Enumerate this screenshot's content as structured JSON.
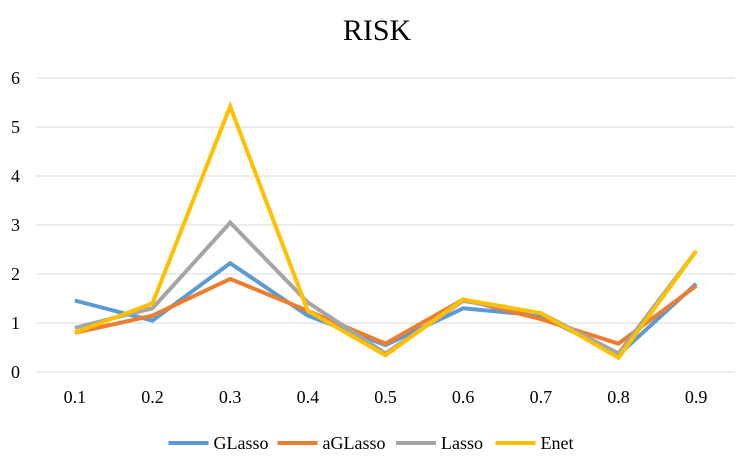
{
  "chart_data": {
    "type": "line",
    "title": "RISK",
    "xlabel": "",
    "ylabel": "",
    "categories": [
      "0.1",
      "0.2",
      "0.3",
      "0.4",
      "0.5",
      "0.6",
      "0.7",
      "0.8",
      "0.9"
    ],
    "ylim": [
      0,
      6
    ],
    "yticks": [
      0,
      1,
      2,
      3,
      4,
      5,
      6
    ],
    "grid": true,
    "legend_position": "bottom",
    "series": [
      {
        "name": "GLasso",
        "color": "#5b9bd5",
        "values": [
          1.46,
          1.05,
          2.22,
          1.15,
          0.55,
          1.3,
          1.15,
          0.35,
          1.8
        ]
      },
      {
        "name": "aGLasso",
        "color": "#ed7d31",
        "values": [
          0.8,
          1.15,
          1.9,
          1.25,
          0.58,
          1.48,
          1.08,
          0.58,
          1.76
        ]
      },
      {
        "name": "Lasso",
        "color": "#a5a5a5",
        "values": [
          0.9,
          1.3,
          3.05,
          1.42,
          0.38,
          1.45,
          1.2,
          0.38,
          2.47
        ]
      },
      {
        "name": "Enet",
        "color": "#ffc000",
        "values": [
          0.8,
          1.4,
          5.42,
          1.25,
          0.34,
          1.48,
          1.2,
          0.29,
          2.47
        ]
      }
    ]
  }
}
